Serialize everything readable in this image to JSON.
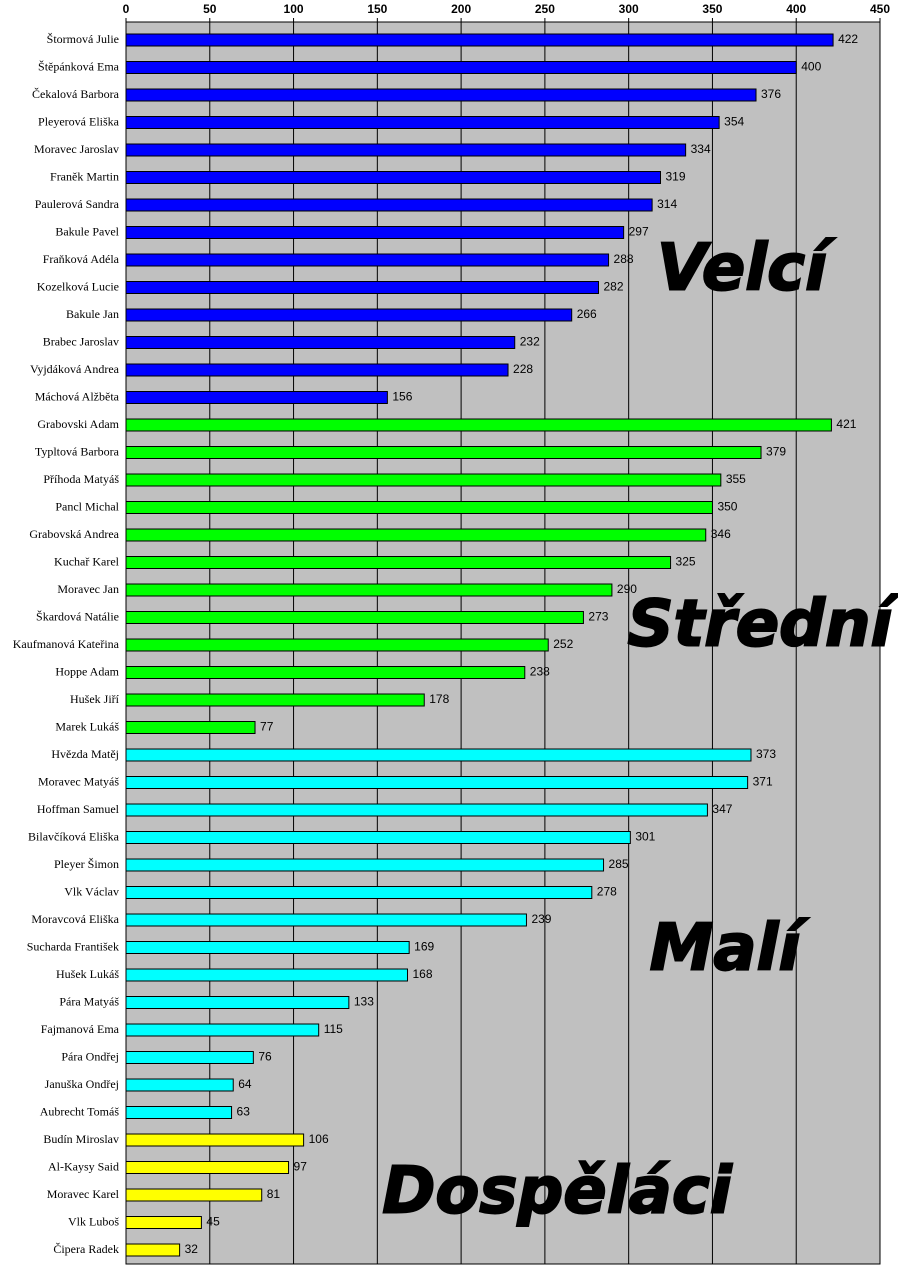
{
  "chart_data": {
    "type": "bar",
    "orientation": "horizontal",
    "xlim": [
      0,
      450
    ],
    "xticks": [
      0,
      50,
      100,
      150,
      200,
      250,
      300,
      350,
      400,
      450
    ],
    "grid": true,
    "series": [
      {
        "name": "Velcí",
        "color": "#0000ff",
        "categories": [
          "Štormová Julie",
          "Štěpánková Ema",
          "Čekalová Barbora",
          "Pleyerová Eliška",
          "Moravec Jaroslav",
          "Franěk Martin",
          "Paulerová Sandra",
          "Bakule Pavel",
          "Fraňková Adéla",
          "Kozelková Lucie",
          "Bakule Jan",
          "Brabec Jaroslav",
          "Vyjdáková Andrea",
          "Máchová Alžběta"
        ],
        "values": [
          422,
          400,
          376,
          354,
          334,
          319,
          314,
          297,
          288,
          282,
          266,
          232,
          228,
          156
        ]
      },
      {
        "name": "Střední",
        "color": "#00ff00",
        "categories": [
          "Grabovski Adam",
          "Typltová Barbora",
          "Příhoda Matyáš",
          "Pancl Michal",
          "Grabovská Andrea",
          "Kuchař Karel",
          "Moravec Jan",
          "Škardová Natálie",
          "Kaufmanová Kateřina",
          "Hoppe Adam",
          "Hušek Jiří",
          "Marek Lukáš"
        ],
        "values": [
          421,
          379,
          355,
          350,
          346,
          325,
          290,
          273,
          252,
          238,
          178,
          77
        ]
      },
      {
        "name": "Malí",
        "color": "#00ffff",
        "categories": [
          "Hvězda Matěj",
          "Moravec Matyáš",
          "Hoffman Samuel",
          "Bilavčíková Eliška",
          "Pleyer Šimon",
          "Vlk Václav",
          "Moravcová Eliška",
          "Sucharda František",
          "Hušek Lukáš",
          "Pára Matyáš",
          "Fajmanová Ema",
          "Pára Ondřej",
          "Januška Ondřej",
          "Aubrecht Tomáš"
        ],
        "values": [
          373,
          371,
          347,
          301,
          285,
          278,
          239,
          169,
          168,
          133,
          115,
          76,
          64,
          63
        ]
      },
      {
        "name": "Dospěláci",
        "color": "#ffff00",
        "categories": [
          "Budín Miroslav",
          "Al-Kaysy Said",
          "Moravec Karel",
          "Vlk Luboš",
          "Čipera Radek"
        ],
        "values": [
          106,
          97,
          81,
          45,
          32
        ]
      }
    ]
  }
}
